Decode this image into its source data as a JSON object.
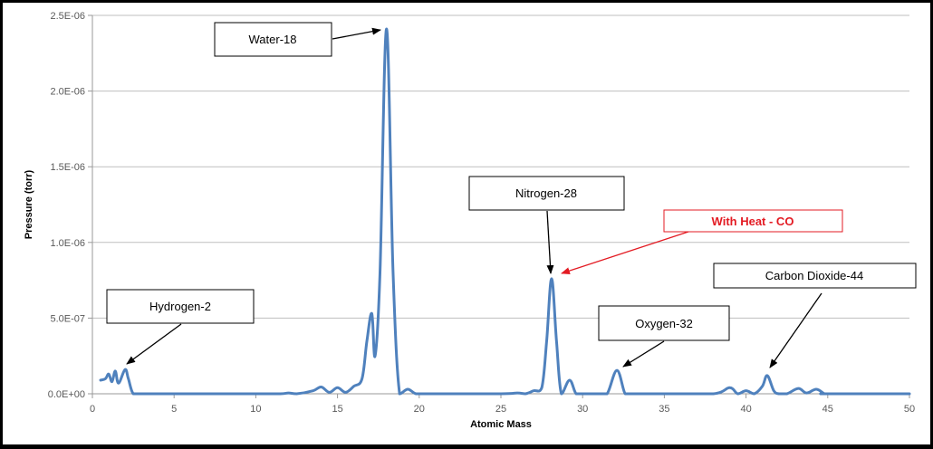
{
  "chart_data": {
    "type": "line",
    "title": "",
    "xlabel": "Atomic Mass",
    "ylabel": "Pressure (torr)",
    "xlim": [
      0,
      50
    ],
    "ylim": [
      0,
      2.5e-06
    ],
    "x_ticks": [
      "0",
      "5",
      "10",
      "15",
      "20",
      "25",
      "30",
      "35",
      "40",
      "45",
      "50"
    ],
    "y_ticks": [
      "0.0E+00",
      "5.0E-07",
      "1.0E-06",
      "1.5E-06",
      "2.0E-06",
      "2.5E-06"
    ],
    "grid": {
      "horizontal": true,
      "vertical": false
    },
    "legend": null,
    "line_color": "#4f81bd",
    "series": [
      {
        "name": "Pressure",
        "x": [
          0.5,
          0.8,
          1.0,
          1.2,
          1.4,
          1.6,
          2.0,
          2.2,
          2.5,
          3,
          5,
          10,
          11.5,
          12,
          12.5,
          13.5,
          14,
          14.5,
          15,
          15.5,
          16,
          16.5,
          16.8,
          17.1,
          17.3,
          17.6,
          18.0,
          18.4,
          18.8,
          19.3,
          19.8,
          20.5,
          21,
          25,
          26,
          26.5,
          27,
          27.5,
          27.8,
          28.1,
          28.4,
          28.7,
          29.2,
          29.6,
          30,
          30.5,
          31,
          31.5,
          32.1,
          32.6,
          33,
          35,
          38,
          39,
          39.5,
          40,
          40.5,
          41,
          41.3,
          41.7,
          42,
          42.5,
          43.2,
          43.7,
          44.3,
          44.8,
          45,
          50
        ],
        "y": [
          9e-08,
          1e-07,
          1.3e-07,
          8e-08,
          1.5e-07,
          7e-08,
          1.6e-07,
          1e-07,
          0,
          0,
          0,
          0,
          0,
          5e-09,
          0,
          2e-08,
          4.5e-08,
          1e-08,
          4e-08,
          1e-08,
          5e-08,
          1e-07,
          3.5e-07,
          5.3e-07,
          2.5e-07,
          8e-07,
          2.41e-06,
          8e-07,
          0,
          3e-08,
          0,
          0,
          0,
          0,
          5e-09,
          0,
          2e-08,
          4e-08,
          3.5e-07,
          7.6e-07,
          3.5e-07,
          0,
          9e-08,
          0,
          0,
          0,
          0,
          0,
          1.55e-07,
          0,
          0,
          0,
          0,
          4e-08,
          0,
          2e-08,
          0,
          5e-08,
          1.2e-07,
          2e-08,
          0,
          0,
          3.5e-08,
          5e-09,
          3e-08,
          0,
          0,
          0
        ]
      }
    ],
    "annotations": [
      {
        "text": "Water-18",
        "target_x": 18.0,
        "target_y": 2.41e-06,
        "color": "#000000"
      },
      {
        "text": "Hydrogen-2",
        "target_x": 2.0,
        "target_y": 1.6e-07,
        "color": "#000000"
      },
      {
        "text": "Nitrogen-28",
        "target_x": 28.1,
        "target_y": 7.6e-07,
        "color": "#000000"
      },
      {
        "text": "With Heat - CO",
        "target_x": 28.1,
        "target_y": 7.6e-07,
        "color": "#e31b23"
      },
      {
        "text": "Oxygen-32",
        "target_x": 32.1,
        "target_y": 1.55e-07,
        "color": "#000000"
      },
      {
        "text": "Carbon Dioxide-44",
        "target_x": 41.3,
        "target_y": 1.2e-07,
        "color": "#000000"
      }
    ]
  }
}
